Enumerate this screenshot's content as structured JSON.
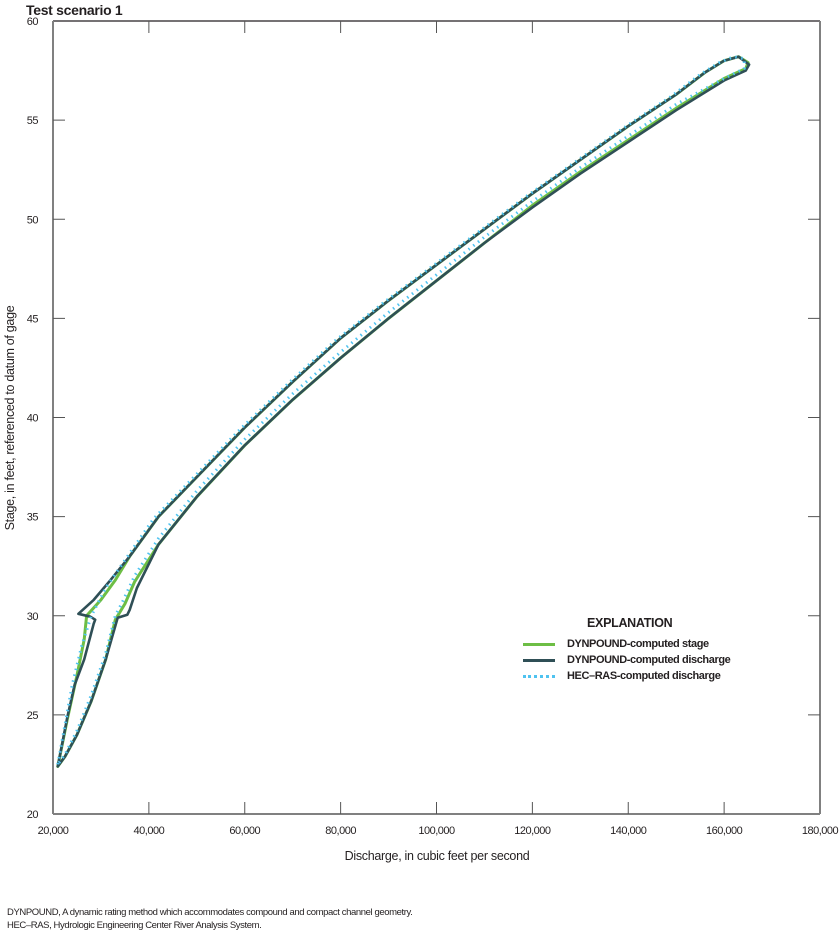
{
  "figure": {
    "title": "Test scenario 1",
    "footnotes": [
      "DYNPOUND, A dynamic rating method which accommodates compound and compact channel geometry.",
      "HEC–RAS, Hydrologic Engineering Center River Analysis System."
    ]
  },
  "legend": {
    "title": "EXPLANATION",
    "items": [
      {
        "label": "DYNPOUND-computed stage",
        "color": "#6dbe45",
        "style": "solid"
      },
      {
        "label": "DYNPOUND-computed discharge",
        "color": "#2f4f56",
        "style": "solid"
      },
      {
        "label": "HEC–RAS-computed discharge",
        "color": "#4fc3f0",
        "style": "dotted"
      }
    ]
  },
  "colors": {
    "axis": "#808080",
    "stage": "#6dbe45",
    "dyn_discharge": "#2f4f56",
    "hecras": "#4fc3f0"
  },
  "chart_data": {
    "type": "line",
    "title": "Test scenario 1",
    "xlabel": "Discharge, in cubic feet per second",
    "ylabel": "Stage, in feet, referenced to datum of gage",
    "xlim": [
      20000,
      180000
    ],
    "ylim": [
      20,
      60
    ],
    "xticks": [
      20000,
      40000,
      60000,
      80000,
      100000,
      120000,
      140000,
      160000,
      180000
    ],
    "xtick_labels": [
      "20,000",
      "40,000",
      "60,000",
      "80,000",
      "100,000",
      "120,000",
      "140,000",
      "160,000",
      "180,000"
    ],
    "yticks": [
      20,
      25,
      30,
      35,
      40,
      45,
      50,
      55,
      60
    ],
    "ytick_labels": [
      "20",
      "25",
      "30",
      "35",
      "40",
      "45",
      "50",
      "55",
      "60"
    ],
    "grid": false,
    "legend_position": "lower right (inside plot)",
    "series": [
      {
        "name": "DYNPOUND-computed stage",
        "color": "#6dbe45",
        "style": "solid",
        "points": [
          [
            21000,
            22.4
          ],
          [
            23000,
            24.8
          ],
          [
            25000,
            27.0
          ],
          [
            26500,
            28.8
          ],
          [
            27000,
            30.0
          ],
          [
            30000,
            30.8
          ],
          [
            33000,
            31.8
          ],
          [
            36000,
            33.0
          ],
          [
            42000,
            35.0
          ],
          [
            50000,
            37.0
          ],
          [
            60000,
            39.5
          ],
          [
            70000,
            41.8
          ],
          [
            80000,
            44.0
          ],
          [
            90000,
            45.9
          ],
          [
            100000,
            47.7
          ],
          [
            110000,
            49.5
          ],
          [
            120000,
            51.3
          ],
          [
            130000,
            53.0
          ],
          [
            140000,
            54.7
          ],
          [
            150000,
            56.3
          ],
          [
            156000,
            57.4
          ],
          [
            160000,
            58.0
          ],
          [
            163000,
            58.2
          ],
          [
            165000,
            57.9
          ],
          [
            164500,
            57.6
          ],
          [
            160000,
            57.1
          ],
          [
            150000,
            55.6
          ],
          [
            140000,
            54.0
          ],
          [
            130000,
            52.4
          ],
          [
            120000,
            50.7
          ],
          [
            110000,
            48.8
          ],
          [
            100000,
            46.9
          ],
          [
            90000,
            45.0
          ],
          [
            80000,
            43.0
          ],
          [
            70000,
            40.9
          ],
          [
            60000,
            38.6
          ],
          [
            50000,
            36.0
          ],
          [
            42000,
            33.6
          ],
          [
            37000,
            31.7
          ],
          [
            35000,
            30.6
          ],
          [
            33000,
            29.8
          ],
          [
            31000,
            27.8
          ],
          [
            28000,
            25.7
          ],
          [
            25000,
            24.0
          ],
          [
            22500,
            22.9
          ],
          [
            21000,
            22.4
          ]
        ]
      },
      {
        "name": "DYNPOUND-computed discharge",
        "color": "#2f4f56",
        "style": "solid",
        "points": [
          [
            21000,
            22.4
          ],
          [
            23000,
            24.9
          ],
          [
            24500,
            26.5
          ],
          [
            26500,
            27.8
          ],
          [
            28500,
            29.6
          ],
          [
            28800,
            29.8
          ],
          [
            27800,
            29.95
          ],
          [
            25300,
            30.1
          ],
          [
            28500,
            30.8
          ],
          [
            32000,
            31.8
          ],
          [
            36000,
            33.0
          ],
          [
            42000,
            35.0
          ],
          [
            50000,
            37.0
          ],
          [
            60000,
            39.5
          ],
          [
            70000,
            41.8
          ],
          [
            80000,
            44.0
          ],
          [
            90000,
            45.9
          ],
          [
            100000,
            47.7
          ],
          [
            110000,
            49.5
          ],
          [
            120000,
            51.3
          ],
          [
            130000,
            53.0
          ],
          [
            140000,
            54.7
          ],
          [
            150000,
            56.3
          ],
          [
            156000,
            57.4
          ],
          [
            160000,
            58.0
          ],
          [
            163000,
            58.2
          ],
          [
            165200,
            57.8
          ],
          [
            164500,
            57.5
          ],
          [
            160000,
            57.0
          ],
          [
            150000,
            55.5
          ],
          [
            140000,
            53.9
          ],
          [
            130000,
            52.3
          ],
          [
            120000,
            50.6
          ],
          [
            110000,
            48.8
          ],
          [
            100000,
            46.9
          ],
          [
            90000,
            45.0
          ],
          [
            80000,
            43.0
          ],
          [
            70000,
            40.9
          ],
          [
            60000,
            38.6
          ],
          [
            50000,
            36.0
          ],
          [
            42000,
            33.6
          ],
          [
            37500,
            31.4
          ],
          [
            36000,
            30.3
          ],
          [
            35500,
            30.05
          ],
          [
            33500,
            29.9
          ],
          [
            31000,
            27.8
          ],
          [
            28000,
            25.7
          ],
          [
            25000,
            24.0
          ],
          [
            22500,
            22.9
          ],
          [
            21000,
            22.4
          ]
        ]
      },
      {
        "name": "HEC–RAS-computed discharge",
        "color": "#4fc3f0",
        "style": "dotted",
        "points": [
          [
            21000,
            22.5
          ],
          [
            22500,
            24.5
          ],
          [
            24000,
            26.5
          ],
          [
            26000,
            28.5
          ],
          [
            28000,
            30.0
          ],
          [
            31000,
            31.4
          ],
          [
            35000,
            32.8
          ],
          [
            41000,
            34.9
          ],
          [
            49000,
            36.9
          ],
          [
            59000,
            39.4
          ],
          [
            69000,
            41.7
          ],
          [
            79000,
            43.9
          ],
          [
            89000,
            45.8
          ],
          [
            99000,
            47.6
          ],
          [
            109000,
            49.4
          ],
          [
            119000,
            51.2
          ],
          [
            129000,
            52.9
          ],
          [
            139000,
            54.6
          ],
          [
            149000,
            56.2
          ],
          [
            155000,
            57.3
          ],
          [
            159000,
            57.9
          ],
          [
            162000,
            58.2
          ],
          [
            164200,
            58.1
          ],
          [
            164200,
            57.6
          ],
          [
            160000,
            57.1
          ],
          [
            150000,
            55.8
          ],
          [
            140000,
            54.2
          ],
          [
            130000,
            52.6
          ],
          [
            120000,
            50.9
          ],
          [
            110000,
            49.1
          ],
          [
            100000,
            47.2
          ],
          [
            90000,
            45.3
          ],
          [
            80000,
            43.3
          ],
          [
            70000,
            41.2
          ],
          [
            60000,
            38.9
          ],
          [
            50000,
            36.3
          ],
          [
            42000,
            33.9
          ],
          [
            37000,
            32.0
          ],
          [
            34500,
            30.7
          ],
          [
            33000,
            30.0
          ],
          [
            31000,
            28.1
          ],
          [
            28000,
            26.0
          ],
          [
            25000,
            24.2
          ],
          [
            22500,
            23.0
          ],
          [
            21000,
            22.5
          ]
        ]
      }
    ]
  }
}
